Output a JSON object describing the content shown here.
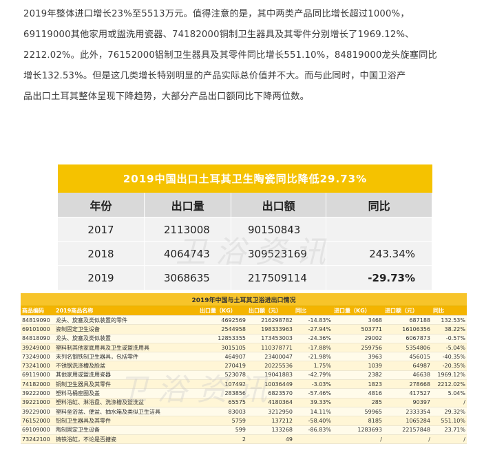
{
  "paragraph": [
    "2019年整体进口增长23%至5513万元。值得注意的是，其中两类产品同比增长超过1000%，",
    "69119000其他家用或盥洗用瓷器、74182000铜制卫生器具及其零件分别增长了1969.12%、",
    "2212.02%。此外，76152000铝制卫生器具及其零件同比增长551.10%，84819000龙头旋塞同比",
    "增长132.53%。但是这几类增长特别明显的产品实际总价值并不大。而与此同时，中国卫浴产",
    "品出口土耳其整体呈现下降趋势，大部分产品出口额同比下降两位数。"
  ],
  "table1": {
    "title": "2019中国出口土耳其卫生陶瓷同比降低29.73%",
    "headers": [
      "年份",
      "出口量",
      "出口额",
      "同比"
    ],
    "rows": [
      [
        "2017",
        "2113008",
        "90150843",
        ""
      ],
      [
        "2018",
        "4064743",
        "309523169",
        "243.34%"
      ],
      [
        "2019",
        "3068635",
        "217509114",
        "-29.73%"
      ]
    ]
  },
  "table2": {
    "title": "2019年中国与土耳其卫浴进出口情况",
    "headers": [
      "商品编码",
      "2019商品名称",
      "出口量（KG）",
      "出口额（元）",
      "同比",
      "进口量（KG）",
      "进口额（元）",
      "同比"
    ],
    "rows": [
      [
        "84819090",
        "龙头、旋塞及类似装置的零件",
        "4692569",
        "216298782",
        "-14.83%",
        "3468",
        "687188",
        "132.53%"
      ],
      [
        "69101000",
        "瓷制固定卫生设备",
        "2544958",
        "198333963",
        "-27.94%",
        "503771",
        "16106356",
        "38.22%"
      ],
      [
        "84818090",
        "龙头、旋塞及类似装置",
        "12853355",
        "173453003",
        "-24.36%",
        "29002",
        "6067873",
        "-0.57%"
      ],
      [
        "39249000",
        "塑料制其他家庭用具及卫生或盥洗用具",
        "3015105",
        "110378771",
        "-17.88%",
        "259756",
        "5354806",
        "-5.04%"
      ],
      [
        "73249000",
        "未列名钢铁制卫生器具，包括零件",
        "464907",
        "23400047",
        "-21.98%",
        "3963",
        "456015",
        "-40.35%"
      ],
      [
        "73241000",
        "不锈钢洗涤槽及脸盆",
        "270419",
        "20225536",
        "1.75%",
        "1039",
        "64987",
        "-20.35%"
      ],
      [
        "69119000",
        "其他家用或盥洗用瓷器",
        "523078",
        "19041883",
        "-42.79%",
        "2382",
        "46638",
        "1969.12%"
      ],
      [
        "74182000",
        "铜制卫生器具及其零件",
        "107492",
        "10036449",
        "-3.03%",
        "1823",
        "278668",
        "2212.02%"
      ],
      [
        "39222000",
        "塑料马桶座圈及盖",
        "283856",
        "6823570",
        "-57.46%",
        "4816",
        "417527",
        "5.04%"
      ],
      [
        "39221000",
        "塑料浴缸、淋浴盘、洗涤槽及盥洗盆",
        "65575",
        "4180364",
        "39.33%",
        "285",
        "90397",
        "/"
      ],
      [
        "39229000",
        "塑料坐浴盆、便盆、抽水箱及类似卫生洁具",
        "83003",
        "3212950",
        "14.11%",
        "59965",
        "2333354",
        "29.32%"
      ],
      [
        "76152000",
        "铝制卫生器具及其零件",
        "5759",
        "137212",
        "-58.40%",
        "8185",
        "1065284",
        "551.10%"
      ],
      [
        "69109000",
        "陶制固定卫生设备",
        "599",
        "133268",
        "-86.83%",
        "1283693",
        "22157848",
        "23.71%"
      ],
      [
        "73242100",
        "铸铁浴缸，不论是否搪瓷",
        "2",
        "49",
        "",
        "/",
        "/",
        "/"
      ]
    ]
  }
}
